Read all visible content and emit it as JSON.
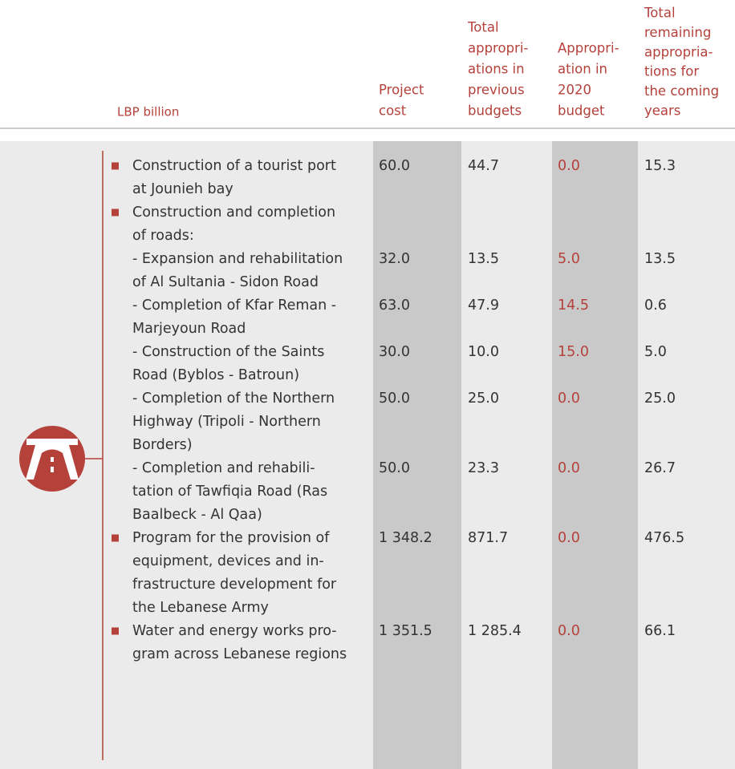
{
  "header": {
    "unit": "LBP billion",
    "columns": [
      [
        "Project",
        "cost"
      ],
      [
        "Total",
        "appropri-",
        "ations in",
        "previous",
        "budgets"
      ],
      [
        "Appropri-",
        "ation in",
        "2020",
        "budget"
      ],
      [
        "Total",
        "remaining",
        "appropria-",
        "tions for",
        "the coming",
        "years"
      ]
    ]
  },
  "table": {
    "rows": [
      {
        "bullet": true,
        "label": [
          "Construction of a tourist port",
          "at Jounieh bay"
        ],
        "values": [
          "60.0",
          "44.7",
          "0.0",
          "15.3"
        ]
      },
      {
        "bullet": true,
        "label": [
          "Construction and completion",
          "of roads:"
        ],
        "values": []
      },
      {
        "bullet": false,
        "label": [
          "- Expansion and rehabilitation",
          "of Al Sultania - Sidon Road"
        ],
        "values": [
          "32.0",
          "13.5",
          "5.0",
          "13.5"
        ]
      },
      {
        "bullet": false,
        "label": [
          "- Completion of Kfar Reman -",
          "Marjeyoun Road"
        ],
        "values": [
          "63.0",
          "47.9",
          "14.5",
          "0.6"
        ]
      },
      {
        "bullet": false,
        "label": [
          "- Construction of the Saints",
          "Road (Byblos - Batroun)"
        ],
        "values": [
          "30.0",
          "10.0",
          "15.0",
          "5.0"
        ]
      },
      {
        "bullet": false,
        "label": [
          "- Completion of the Northern",
          "Highway (Tripoli - Northern",
          "Borders)"
        ],
        "values": [
          "50.0",
          "25.0",
          "0.0",
          "25.0"
        ]
      },
      {
        "bullet": false,
        "label": [
          "- Completion and rehabili-",
          "tation of Tawfiqia Road (Ras",
          "Baalbeck - Al Qaa)"
        ],
        "values": [
          "50.0",
          "23.3",
          "0.0",
          "26.7"
        ]
      },
      {
        "bullet": true,
        "label": [
          "Program for the provision of",
          "equipment, devices and in-",
          "frastructure development for",
          "the Lebanese Army"
        ],
        "values": [
          "1 348.2",
          "871.7",
          "0.0",
          "476.5"
        ]
      },
      {
        "bullet": true,
        "label": [
          "Water and energy works pro-",
          "gram across Lebanese regions"
        ],
        "values": [
          "1 351.5",
          "1 285.4",
          "0.0",
          "66.1"
        ]
      }
    ]
  }
}
